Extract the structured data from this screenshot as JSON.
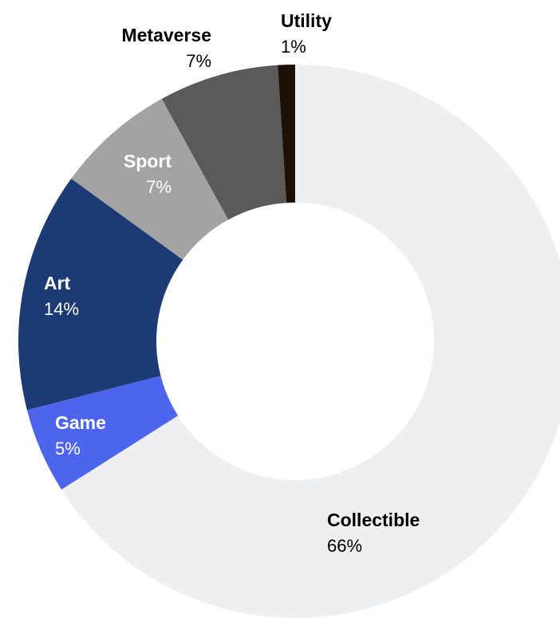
{
  "chart_data": {
    "type": "pie",
    "title": "",
    "legend": "none",
    "slices": [
      {
        "label": "Collectible",
        "value": 66,
        "display": "66%",
        "color": "#EEEFF1",
        "text_color": "#000000"
      },
      {
        "label": "Game",
        "value": 5,
        "display": "5%",
        "color": "#4D65EC",
        "text_color": "#ffffff"
      },
      {
        "label": "Art",
        "value": 14,
        "display": "14%",
        "color": "#1C3A73",
        "text_color": "#ffffff"
      },
      {
        "label": "Sport",
        "value": 7,
        "display": "7%",
        "color": "#A3A3A3",
        "text_color": "#ffffff"
      },
      {
        "label": "Metaverse",
        "value": 7,
        "display": "7%",
        "color": "#5A5A5A",
        "text_color": "#000000"
      },
      {
        "label": "Utility",
        "value": 1,
        "display": "1%",
        "color": "#1E1005",
        "text_color": "#000000"
      }
    ]
  }
}
